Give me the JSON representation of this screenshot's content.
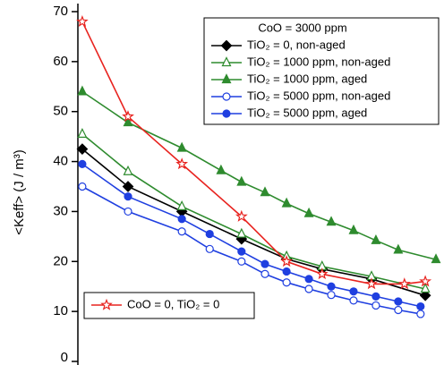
{
  "chart_data": {
    "type": "line",
    "y_label": "<Keff> (J / m³)",
    "legend_title": "CoO = 3000 ppm",
    "legend_loc": "upper right",
    "xlim": [
      0,
      100
    ],
    "ylim": [
      0,
      70
    ],
    "yticks": [
      0,
      10,
      20,
      30,
      40,
      50,
      60,
      70
    ],
    "series": [
      {
        "name": "TiO₂ = 0, non-aged",
        "color": "#000000",
        "marker": "diamond",
        "x": [
          1.2,
          13.7,
          28.4,
          44.7,
          57,
          66.7,
          80.2,
          94.9
        ],
        "values": [
          42.5,
          35,
          30,
          24.5,
          20.5,
          18.5,
          16.5,
          13.2
        ]
      },
      {
        "name": "TiO₂ = 1000 ppm, non-aged",
        "color": "#2e8b2e",
        "marker": "triangle-open",
        "x": [
          1.2,
          13.7,
          28.4,
          44.7,
          57,
          66.7,
          80.2,
          94.9
        ],
        "values": [
          45.5,
          38,
          31,
          25.5,
          21,
          19,
          17,
          14.5
        ]
      },
      {
        "name": "TiO₂ = 1000 ppm, aged",
        "color": "#2e8b2e",
        "marker": "triangle",
        "x": [
          1.2,
          13.7,
          28.4,
          39.1,
          44.7,
          51.1,
          57,
          63.1,
          69.2,
          75.3,
          81.4,
          87.5,
          97.8
        ],
        "values": [
          54,
          47.8,
          42.7,
          38.2,
          35.9,
          33.8,
          31.6,
          29.6,
          27.9,
          26.2,
          24.2,
          22.3,
          20.4
        ]
      },
      {
        "name": "TiO₂ = 5000 ppm, non-aged",
        "color": "#1f3fe0",
        "marker": "circle-open",
        "x": [
          1.2,
          13.7,
          28.4,
          36,
          44.7,
          51.1,
          57,
          63.1,
          69.2,
          75.3,
          81.4,
          87.5,
          93.6
        ],
        "values": [
          35,
          30,
          26,
          22.5,
          20,
          17.5,
          15.8,
          14.5,
          13.3,
          12.2,
          11.2,
          10.3,
          9.5
        ]
      },
      {
        "name": "TiO₂ = 5000 ppm, aged",
        "color": "#1f3fe0",
        "marker": "circle",
        "x": [
          1.2,
          13.7,
          28.4,
          36,
          44.7,
          51.1,
          57,
          63.1,
          69.2,
          75.3,
          81.4,
          87.5,
          93.6
        ],
        "values": [
          39.5,
          33,
          28.5,
          25.5,
          22,
          19.5,
          18,
          16.5,
          15,
          14,
          13,
          12,
          11
        ]
      },
      {
        "name": "CoO = 0, TiO₂ = 0",
        "color": "#e8231f",
        "marker": "star-open",
        "legend_loc": "lower left",
        "x": [
          1.2,
          13.7,
          28.4,
          44.7,
          57,
          66.7,
          80.2,
          89.2,
          94.9
        ],
        "values": [
          68,
          49,
          39.5,
          29,
          20,
          17.5,
          15.5,
          15.5,
          16
        ]
      }
    ]
  }
}
